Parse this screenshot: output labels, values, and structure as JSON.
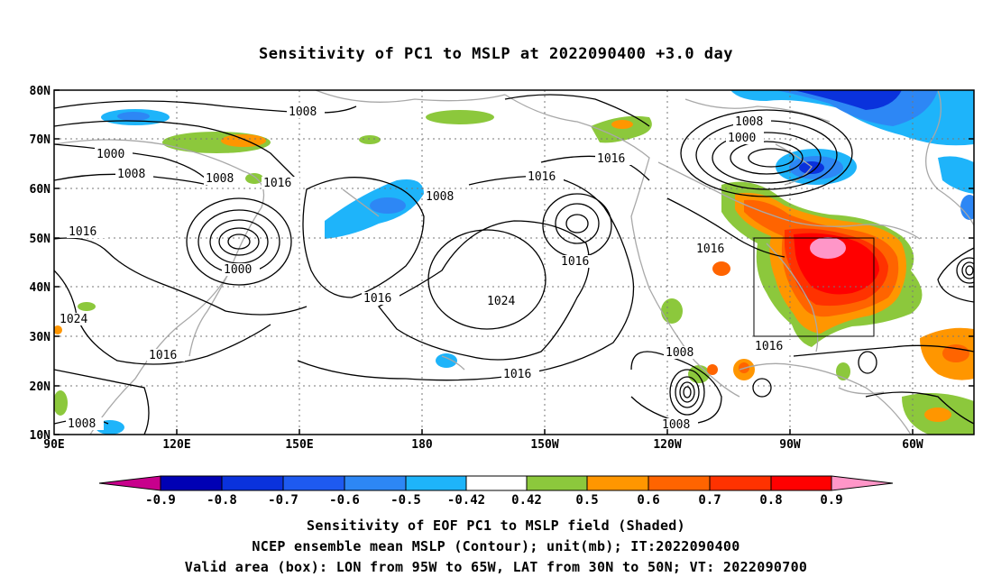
{
  "title": "Sensitivity of PC1 to MSLP at 2022090400 +3.0 day",
  "lat_labels": [
    "80N",
    "70N",
    "60N",
    "50N",
    "40N",
    "30N",
    "20N",
    "10N"
  ],
  "lon_labels": [
    "90E",
    "120E",
    "150E",
    "180",
    "150W",
    "120W",
    "90W",
    "60W"
  ],
  "colorbar": {
    "ticks": [
      "-0.9",
      "-0.8",
      "-0.7",
      "-0.6",
      "-0.5",
      "-0.42",
      "0.42",
      "0.5",
      "0.6",
      "0.7",
      "0.8",
      "0.9"
    ],
    "colors": [
      "#c8008c",
      "#0000b4",
      "#0a32dc",
      "#1e5af0",
      "#2d87f5",
      "#1eb4fa",
      "#ffffff",
      "#8cc83c",
      "#ff9600",
      "#ff6400",
      "#ff3200",
      "#ff0000",
      "#ff96c8"
    ]
  },
  "contour_labels": [
    "1008",
    "1008",
    "1000",
    "1008",
    "1008",
    "1016",
    "1008",
    "1016",
    "1016",
    "1000",
    "1016",
    "1024",
    "1016",
    "1024",
    "1016",
    "1016",
    "1016",
    "1016",
    "1000",
    "1008",
    "1016",
    "1016",
    "1008",
    "1008"
  ],
  "captions": {
    "line1": "Sensitivity of EOF PC1 to MSLP field (Shaded)",
    "line2": "NCEP ensemble mean MSLP (Contour); unit(mb); IT:2022090400",
    "line3": "Valid area (box): LON from 95W to 65W, LAT from 30N to 50N; VT: 2022090700"
  }
}
